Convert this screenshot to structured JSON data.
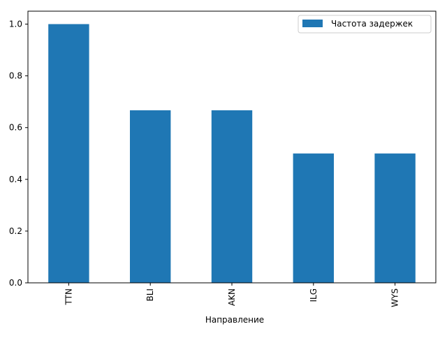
{
  "chart_data": {
    "type": "bar",
    "categories": [
      "TTN",
      "BLI",
      "AKN",
      "ILG",
      "WYS"
    ],
    "series": [
      {
        "name": "Частота задержек",
        "values": [
          1.0,
          0.667,
          0.667,
          0.5,
          0.5
        ],
        "color": "#1f77b4"
      }
    ],
    "xlabel": "Направление",
    "ylabel": "",
    "ylim": [
      0,
      1.05
    ],
    "yticks": [
      0.0,
      0.2,
      0.4,
      0.6,
      0.8,
      1.0
    ],
    "ytick_labels": [
      "0.0",
      "0.2",
      "0.4",
      "0.6",
      "0.8",
      "1.0"
    ],
    "legend_position": "top-right",
    "grid": false
  }
}
